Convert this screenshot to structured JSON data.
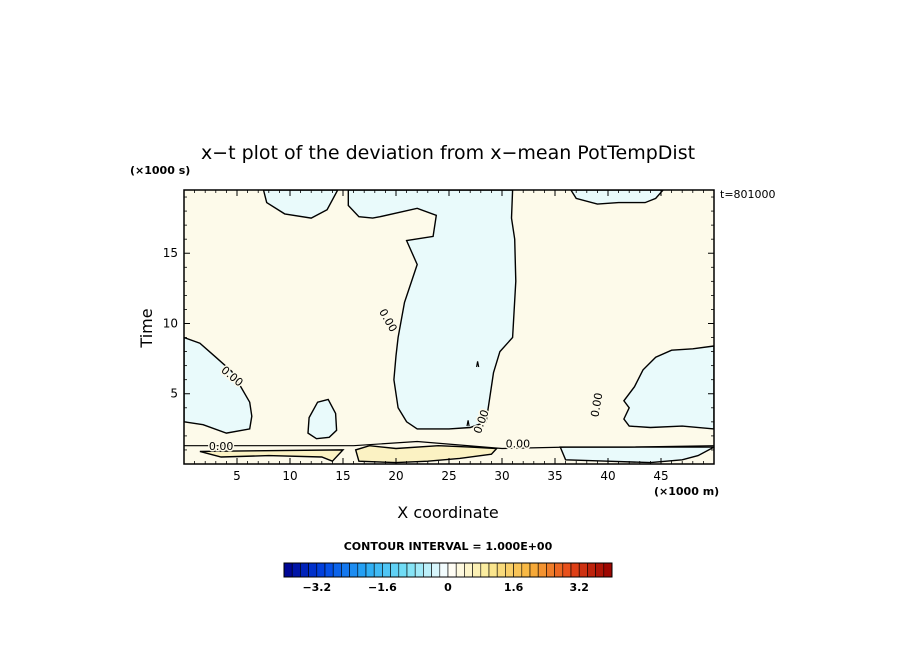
{
  "chart_data": {
    "type": "heatmap",
    "title": "x−t plot of the deviation from x−mean PotTempDist",
    "xlabel": "X coordinate",
    "ylabel": "Time",
    "x_unit": "(×1000 m)",
    "y_unit": "(×1000 s)",
    "time_annotation": "t=801000",
    "xlim": [
      0,
      50
    ],
    "ylim": [
      0,
      19.5
    ],
    "x_ticks": [
      5,
      10,
      15,
      20,
      25,
      30,
      35,
      40,
      45
    ],
    "y_ticks": [
      5,
      10,
      15
    ],
    "contour_label": "0.00",
    "contour_interval": "CONTOUR INTERVAL = 1.000E+00",
    "colorbar": {
      "min": -4,
      "max": 4,
      "step": 0.2,
      "tick_labels": [
        "−3.2",
        "−1.6",
        "0",
        "1.6",
        "3.2"
      ],
      "tick_values": [
        -3.2,
        -1.6,
        0,
        1.6,
        3.2
      ]
    },
    "regions": [
      {
        "sign": "negative",
        "outline": [
          [
            7.5,
            19.5
          ],
          [
            7.8,
            18.6
          ],
          [
            9.5,
            17.8
          ],
          [
            12,
            17.5
          ],
          [
            13.5,
            18.1
          ],
          [
            14.5,
            19.5
          ]
        ]
      },
      {
        "sign": "negative",
        "outline": [
          [
            15.5,
            19.5
          ],
          [
            15.5,
            18.4
          ],
          [
            16.5,
            17.6
          ],
          [
            17.8,
            17.5
          ],
          [
            18.5,
            17.6
          ],
          [
            22,
            18.2
          ],
          [
            23.8,
            17.7
          ],
          [
            23.5,
            16.2
          ],
          [
            21,
            15.9
          ],
          [
            22,
            14.2
          ],
          [
            20.8,
            11.5
          ],
          [
            20.2,
            9
          ],
          [
            20,
            7.7
          ],
          [
            19.8,
            6
          ],
          [
            20.2,
            4
          ],
          [
            21,
            3
          ],
          [
            22,
            2.5
          ],
          [
            25,
            2.5
          ],
          [
            27,
            2.6
          ],
          [
            28.5,
            3
          ],
          [
            28.8,
            4.5
          ],
          [
            29.2,
            6.5
          ],
          [
            29.8,
            8
          ],
          [
            31,
            9
          ],
          [
            31.3,
            13
          ],
          [
            31.2,
            16
          ],
          [
            30.9,
            17.5
          ],
          [
            31,
            19.5
          ]
        ]
      },
      {
        "sign": "negative",
        "outline": [
          [
            0,
            9
          ],
          [
            1.5,
            8.6
          ],
          [
            3,
            7.6
          ],
          [
            4.5,
            6.6
          ],
          [
            5.2,
            5.7
          ],
          [
            6.2,
            4.4
          ],
          [
            6.4,
            3.4
          ],
          [
            6.2,
            2.5
          ],
          [
            4,
            2.2
          ],
          [
            1.8,
            2.8
          ],
          [
            0,
            3
          ]
        ]
      },
      {
        "sign": "negative",
        "outline": [
          [
            11.7,
            2.2
          ],
          [
            11.8,
            3.3
          ],
          [
            12.6,
            4.4
          ],
          [
            13.6,
            4.6
          ],
          [
            14.3,
            3.6
          ],
          [
            14.4,
            2.4
          ],
          [
            13.7,
            1.9
          ],
          [
            12.5,
            1.8
          ]
        ]
      },
      {
        "sign": "negative",
        "outline": [
          [
            36.5,
            19.5
          ],
          [
            37,
            18.9
          ],
          [
            39,
            18.5
          ],
          [
            41,
            18.6
          ],
          [
            43.5,
            18.6
          ],
          [
            44.5,
            18.9
          ],
          [
            45.2,
            19.5
          ]
        ]
      },
      {
        "sign": "negative",
        "outline": [
          [
            50,
            8.4
          ],
          [
            48,
            8.2
          ],
          [
            46,
            8.1
          ],
          [
            44.5,
            7.6
          ],
          [
            43.3,
            6.7
          ],
          [
            42.5,
            5.5
          ],
          [
            41.5,
            4.5
          ],
          [
            42,
            4
          ],
          [
            41.5,
            3.2
          ],
          [
            42,
            2.7
          ],
          [
            44,
            2.6
          ],
          [
            47,
            2.7
          ],
          [
            50,
            2.5
          ]
        ]
      },
      {
        "sign": "negative",
        "outline": [
          [
            35.5,
            1.2
          ],
          [
            36,
            0.3
          ],
          [
            40,
            0.2
          ],
          [
            44,
            0.1
          ],
          [
            47,
            0.3
          ],
          [
            48.5,
            0.6
          ],
          [
            50,
            1.2
          ]
        ]
      },
      {
        "sign": "positive",
        "outline": [
          [
            16.2,
            1
          ],
          [
            16.5,
            0.2
          ],
          [
            20,
            0.1
          ],
          [
            23,
            0.2
          ],
          [
            26,
            0.4
          ],
          [
            29,
            0.7
          ],
          [
            29.5,
            1.1
          ],
          [
            27,
            1.2
          ],
          [
            24,
            1.3
          ],
          [
            20,
            1.1
          ],
          [
            17.5,
            1.3
          ]
        ]
      },
      {
        "sign": "positive",
        "outline": [
          [
            1.5,
            0.9
          ],
          [
            3.5,
            0.5
          ],
          [
            8,
            0.6
          ],
          [
            13,
            0.5
          ],
          [
            14,
            0.2
          ],
          [
            15,
            1
          ]
        ]
      }
    ],
    "extra_contours": [
      {
        "sign": "zero",
        "path": [
          [
            27.6,
            6.9
          ],
          [
            27.7,
            7.3
          ],
          [
            27.8,
            6.9
          ]
        ]
      },
      {
        "sign": "zero",
        "path": [
          [
            26.7,
            2.7
          ],
          [
            26.8,
            3.1
          ],
          [
            26.9,
            2.7
          ]
        ]
      },
      {
        "sign": "zero",
        "path": [
          [
            0,
            1.3
          ],
          [
            6,
            1.3
          ],
          [
            12,
            1.3
          ],
          [
            16,
            1.3
          ],
          [
            22,
            1.6
          ],
          [
            30,
            1.1
          ],
          [
            36,
            1.2
          ],
          [
            42,
            1.2
          ],
          [
            50,
            1.3
          ]
        ]
      }
    ],
    "contour_labels": [
      {
        "text": "0.00",
        "x": 19.2,
        "y": 10.2,
        "angle": 60
      },
      {
        "text": "0.00",
        "x": 4.5,
        "y": 6.2,
        "angle": 40
      },
      {
        "text": "0.00",
        "x": 28.1,
        "y": 3,
        "angle": -70
      },
      {
        "text": "0.00",
        "x": 3.5,
        "y": 1.2,
        "angle": 0
      },
      {
        "text": "0.00",
        "x": 31.5,
        "y": 1.4,
        "angle": 0
      },
      {
        "text": "0.00",
        "x": 39,
        "y": 4.2,
        "angle": -80
      }
    ]
  }
}
